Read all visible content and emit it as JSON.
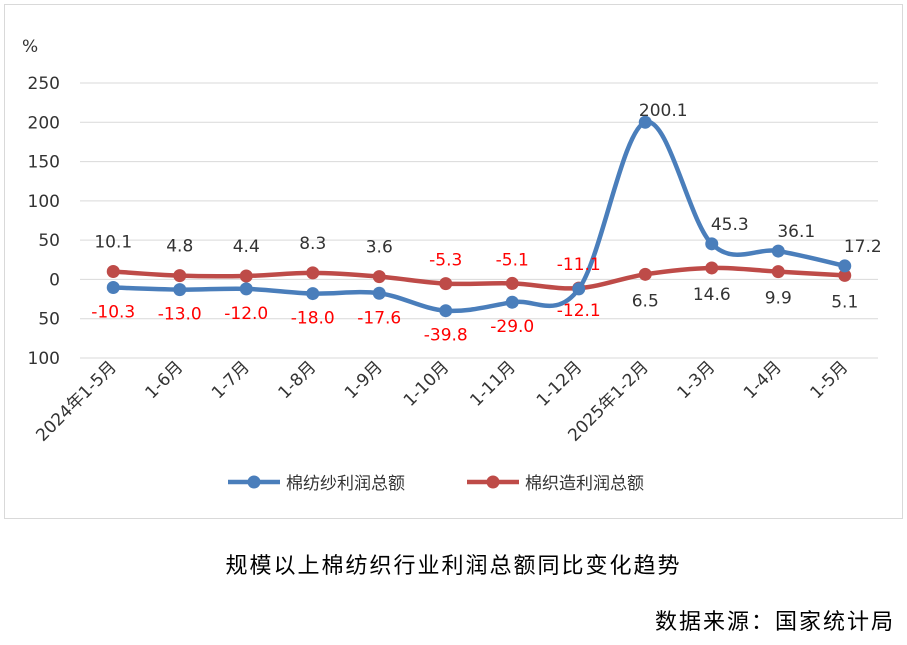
{
  "chart_data": {
    "type": "line",
    "y_unit": "%",
    "ylim": [
      -100,
      250
    ],
    "y_ticks": [
      {
        "value": 250,
        "label": "250",
        "color": "#333333"
      },
      {
        "value": 200,
        "label": "200",
        "color": "#333333"
      },
      {
        "value": 150,
        "label": "150",
        "color": "#333333"
      },
      {
        "value": 100,
        "label": "100",
        "color": "#333333"
      },
      {
        "value": 50,
        "label": "50",
        "color": "#333333"
      },
      {
        "value": 0,
        "label": "0",
        "color": "#333333"
      },
      {
        "value": -50,
        "label": "50",
        "color": "#ff0000"
      },
      {
        "value": -100,
        "label": "100",
        "color": "#ff0000"
      }
    ],
    "categories": [
      "2024年1-5月",
      "1-6月",
      "1-7月",
      "1-8月",
      "1-9月",
      "1-10月",
      "1-11月",
      "1-12月",
      "2025年1-2月",
      "1-3月",
      "1-4月",
      "1-5月"
    ],
    "grid": true,
    "legend_position": "bottom",
    "series": [
      {
        "name": "棉纺纱利润总额",
        "color": "#4a7ebb",
        "values": [
          -10.3,
          -13.0,
          -12.0,
          -18.0,
          -17.6,
          -39.8,
          -29.0,
          -12.1,
          200.1,
          45.3,
          36.1,
          17.2
        ],
        "labels": [
          "-10.3",
          "-13.0",
          "-12.0",
          "-18.0",
          "-17.6",
          "-39.8",
          "-29.0",
          "-12.1",
          "200.1",
          "45.3",
          "36.1",
          "17.2"
        ]
      },
      {
        "name": "棉织造利润总额",
        "color": "#be4b48",
        "values": [
          10.1,
          4.8,
          4.4,
          8.3,
          3.6,
          -5.3,
          -5.1,
          -11.1,
          6.5,
          14.6,
          9.9,
          5.1
        ],
        "labels": [
          "10.1",
          "4.8",
          "4.4",
          "8.3",
          "3.6",
          "-5.3",
          "-5.1",
          "-11.1",
          "6.5",
          "14.6",
          "9.9",
          "5.1"
        ]
      }
    ]
  },
  "caption": "规模以上棉纺织行业利润总额同比变化趋势",
  "source": "数据来源：国家统计局"
}
